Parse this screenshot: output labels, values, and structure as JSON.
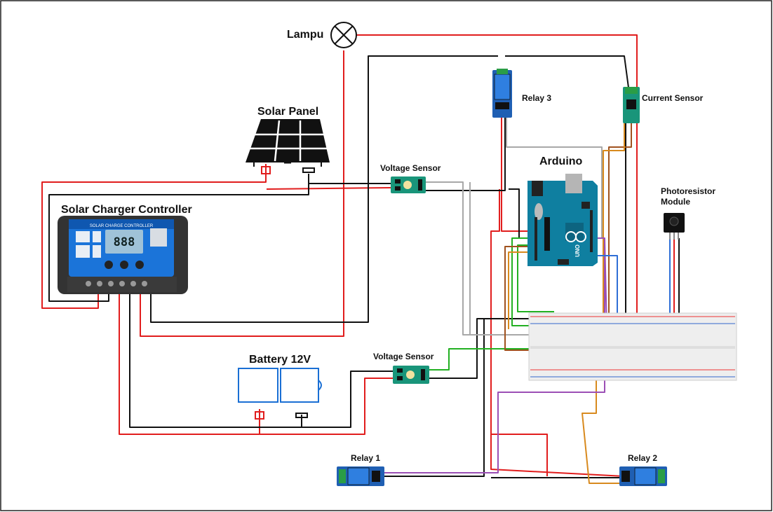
{
  "labels": {
    "lampu": "Lampu",
    "solar_panel": "Solar Panel",
    "solar_charger_controller": "Solar Charger Controller",
    "battery": "Battery 12V",
    "voltage_sensor_top": "Voltage Sensor",
    "voltage_sensor_bottom": "Voltage Sensor",
    "relay_1": "Relay 1",
    "relay_2": "Relay 2",
    "relay_3": "Relay 3",
    "current_sensor": "Current Sensor",
    "arduino": "Arduino",
    "photoresistor_line1": "Photoresistor",
    "photoresistor_line2": "Module"
  },
  "controller": {
    "header_text": "SOLAR CHARGE CONTROLLER",
    "display_text": "888"
  },
  "arduino_board": {
    "brand_text": "UNO"
  },
  "wire_colors": {
    "positive": "#e11d1d",
    "ground": "#111111",
    "signal_green": "#22b022",
    "signal_blue": "#2f6fd6",
    "signal_purple": "#9b4fb5",
    "signal_brown": "#a0521e",
    "signal_orange": "#d88a1e",
    "signal_gray": "#a8a8a8",
    "component_blue": "#1a6fd4"
  }
}
